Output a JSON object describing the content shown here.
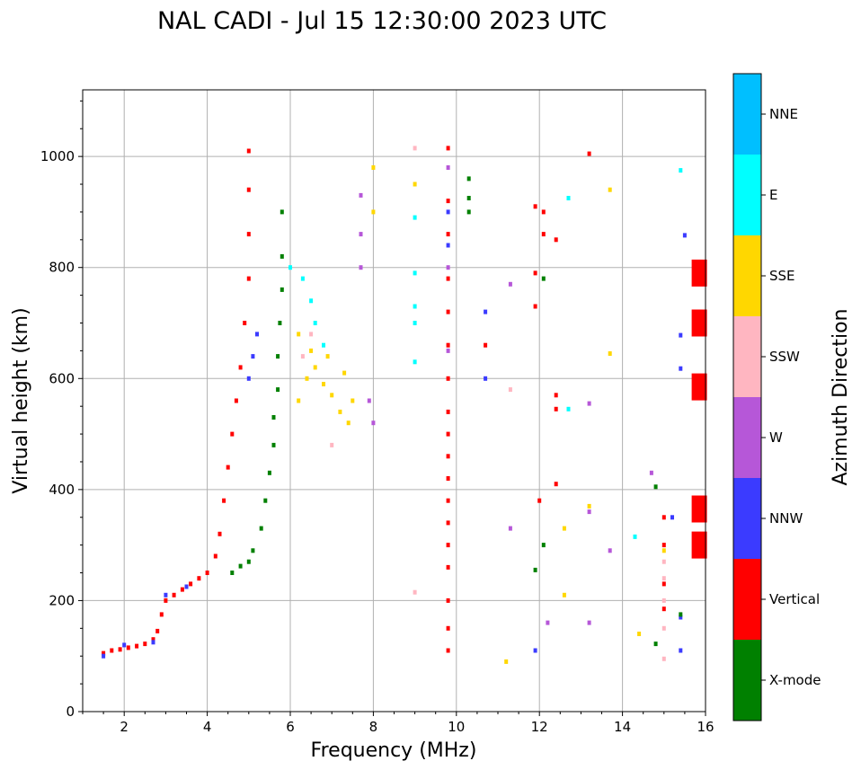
{
  "chart_data": {
    "type": "scatter",
    "title": "NAL CADI - Jul 15 12:30:00 2023 UTC",
    "xlabel": "Frequency (MHz)",
    "ylabel": "Virtual height (km)",
    "xlim": [
      1,
      16
    ],
    "ylim": [
      0,
      1120
    ],
    "xticks": [
      2,
      4,
      6,
      8,
      10,
      12,
      14,
      16
    ],
    "yticks": [
      0,
      200,
      400,
      600,
      800,
      1000
    ],
    "grid": true,
    "colorbar": {
      "label": "Azimuth Direction",
      "categories": [
        {
          "name": "X-mode",
          "color": "#008000"
        },
        {
          "name": "Vertical",
          "color": "#ff0000"
        },
        {
          "name": "NNW",
          "color": "#3b3bff"
        },
        {
          "name": "W",
          "color": "#b657d8"
        },
        {
          "name": "SSW",
          "color": "#ffb6c1"
        },
        {
          "name": "SSE",
          "color": "#ffd700"
        },
        {
          "name": "E",
          "color": "#00ffff"
        },
        {
          "name": "NNE",
          "color": "#00bfff"
        }
      ]
    },
    "traces": [
      {
        "name": "O-mode low F trace",
        "category": "Vertical",
        "points": [
          [
            1.5,
            105
          ],
          [
            1.7,
            110
          ],
          [
            1.9,
            112
          ],
          [
            2.1,
            115
          ],
          [
            2.3,
            118
          ],
          [
            2.5,
            122
          ],
          [
            2.7,
            130
          ],
          [
            2.8,
            145
          ],
          [
            2.9,
            175
          ],
          [
            3.0,
            200
          ],
          [
            3.2,
            210
          ],
          [
            3.4,
            220
          ],
          [
            3.6,
            230
          ],
          [
            3.8,
            240
          ],
          [
            4.0,
            250
          ],
          [
            4.2,
            280
          ],
          [
            4.3,
            320
          ],
          [
            4.4,
            380
          ],
          [
            4.5,
            440
          ],
          [
            4.6,
            500
          ],
          [
            4.7,
            560
          ],
          [
            4.8,
            620
          ],
          [
            4.9,
            700
          ],
          [
            5.0,
            780
          ],
          [
            5.0,
            860
          ],
          [
            5.0,
            940
          ],
          [
            5.0,
            1010
          ]
        ]
      },
      {
        "name": "X-mode F trace",
        "category": "X-mode",
        "points": [
          [
            4.6,
            250
          ],
          [
            4.8,
            262
          ],
          [
            5.0,
            270
          ],
          [
            5.1,
            290
          ],
          [
            5.3,
            330
          ],
          [
            5.4,
            380
          ],
          [
            5.5,
            430
          ],
          [
            5.6,
            480
          ],
          [
            5.6,
            530
          ],
          [
            5.7,
            580
          ],
          [
            5.7,
            640
          ],
          [
            5.75,
            700
          ],
          [
            5.8,
            760
          ],
          [
            5.8,
            820
          ],
          [
            5.8,
            900
          ]
        ]
      },
      {
        "name": "NNW low cluster",
        "category": "NNW",
        "points": [
          [
            1.5,
            100
          ],
          [
            2.0,
            120
          ],
          [
            2.7,
            125
          ],
          [
            3.0,
            210
          ],
          [
            3.5,
            225
          ],
          [
            5.0,
            600
          ],
          [
            5.1,
            640
          ],
          [
            5.2,
            680
          ],
          [
            9.8,
            900
          ],
          [
            9.8,
            840
          ],
          [
            10.7,
            720
          ],
          [
            10.7,
            600
          ],
          [
            11.9,
            110
          ],
          [
            15.5,
            858
          ],
          [
            15.4,
            678
          ],
          [
            15.4,
            618
          ],
          [
            15.2,
            350
          ],
          [
            15.4,
            170
          ],
          [
            15.4,
            110
          ]
        ]
      },
      {
        "name": "SSE spread cluster",
        "category": "SSE",
        "points": [
          [
            6.2,
            560
          ],
          [
            6.4,
            600
          ],
          [
            6.6,
            620
          ],
          [
            6.8,
            590
          ],
          [
            7.0,
            570
          ],
          [
            7.2,
            540
          ],
          [
            7.4,
            520
          ],
          [
            6.2,
            680
          ],
          [
            6.5,
            650
          ],
          [
            6.9,
            640
          ],
          [
            7.3,
            610
          ],
          [
            7.5,
            560
          ],
          [
            8.0,
            980
          ],
          [
            8.0,
            900
          ],
          [
            9.0,
            950
          ],
          [
            11.2,
            90
          ],
          [
            12.6,
            330
          ],
          [
            12.6,
            210
          ],
          [
            13.2,
            370
          ],
          [
            13.7,
            940
          ],
          [
            13.7,
            645
          ],
          [
            14.4,
            140
          ],
          [
            15.0,
            290
          ]
        ]
      },
      {
        "name": "E cluster",
        "category": "E",
        "points": [
          [
            6.0,
            800
          ],
          [
            6.3,
            780
          ],
          [
            6.5,
            740
          ],
          [
            6.6,
            700
          ],
          [
            6.8,
            660
          ],
          [
            9.0,
            890
          ],
          [
            9.0,
            790
          ],
          [
            9.0,
            730
          ],
          [
            9.0,
            700
          ],
          [
            9.0,
            630
          ],
          [
            12.7,
            545
          ],
          [
            12.7,
            925
          ],
          [
            14.3,
            315
          ],
          [
            15.4,
            975
          ]
        ]
      },
      {
        "name": "W cluster",
        "category": "W",
        "points": [
          [
            7.7,
            930
          ],
          [
            7.7,
            860
          ],
          [
            7.7,
            800
          ],
          [
            7.9,
            560
          ],
          [
            8.0,
            520
          ],
          [
            9.8,
            980
          ],
          [
            9.8,
            800
          ],
          [
            9.8,
            650
          ],
          [
            11.3,
            770
          ],
          [
            11.3,
            330
          ],
          [
            12.2,
            160
          ],
          [
            13.2,
            555
          ],
          [
            13.2,
            360
          ],
          [
            13.2,
            160
          ],
          [
            13.7,
            290
          ],
          [
            14.7,
            430
          ]
        ]
      },
      {
        "name": "SSW cluster",
        "category": "SSW",
        "points": [
          [
            6.3,
            640
          ],
          [
            6.5,
            680
          ],
          [
            7.0,
            480
          ],
          [
            9.0,
            1015
          ],
          [
            9.0,
            215
          ],
          [
            11.3,
            580
          ],
          [
            15.0,
            270
          ],
          [
            15.0,
            240
          ],
          [
            15.0,
            200
          ],
          [
            15.0,
            150
          ],
          [
            15.0,
            95
          ]
        ]
      },
      {
        "name": "Vertical multi-hop column",
        "category": "Vertical",
        "points": [
          [
            9.8,
            1015
          ],
          [
            9.8,
            920
          ],
          [
            9.8,
            860
          ],
          [
            9.8,
            780
          ],
          [
            9.8,
            720
          ],
          [
            9.8,
            660
          ],
          [
            9.8,
            600
          ],
          [
            9.8,
            540
          ],
          [
            9.8,
            500
          ],
          [
            9.8,
            460
          ],
          [
            9.8,
            420
          ],
          [
            9.8,
            380
          ],
          [
            9.8,
            340
          ],
          [
            9.8,
            300
          ],
          [
            9.8,
            260
          ],
          [
            9.8,
            200
          ],
          [
            9.8,
            150
          ],
          [
            9.8,
            110
          ],
          [
            10.7,
            660
          ],
          [
            11.9,
            910
          ],
          [
            11.9,
            790
          ],
          [
            11.9,
            730
          ],
          [
            12.1,
            900
          ],
          [
            12.1,
            860
          ],
          [
            12.4,
            850
          ],
          [
            12.4,
            570
          ],
          [
            12.4,
            545
          ],
          [
            12.4,
            410
          ],
          [
            12.0,
            380
          ],
          [
            13.2,
            1005
          ],
          [
            15.0,
            350
          ],
          [
            15.0,
            300
          ],
          [
            15.0,
            230
          ],
          [
            15.0,
            185
          ]
        ]
      },
      {
        "name": "Vertical right-edge blocks",
        "category": "Vertical",
        "points": [
          [
            15.85,
            790
          ],
          [
            15.85,
            700
          ],
          [
            15.85,
            585
          ],
          [
            15.85,
            365
          ],
          [
            15.85,
            300
          ]
        ]
      },
      {
        "name": "X-mode scattered",
        "category": "X-mode",
        "points": [
          [
            10.3,
            960
          ],
          [
            10.3,
            925
          ],
          [
            10.3,
            900
          ],
          [
            12.1,
            780
          ],
          [
            12.1,
            300
          ],
          [
            11.9,
            255
          ],
          [
            14.8,
            405
          ],
          [
            14.8,
            122
          ],
          [
            15.4,
            175
          ]
        ]
      }
    ]
  }
}
